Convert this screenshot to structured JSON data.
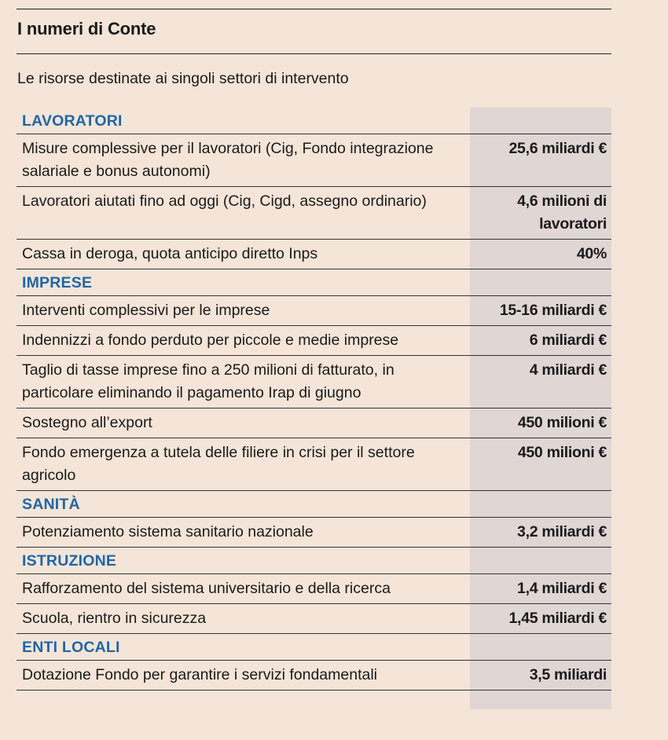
{
  "header": {
    "title": "I numeri di Conte",
    "subtitle": "Le risorse destinate ai singoli settori di intervento"
  },
  "sections": [
    {
      "title": "LAVORATORI",
      "rows": [
        {
          "label": "Misure complessive per il lavoratori (Cig, Fondo integrazione salariale e bonus autonomi)",
          "value": "25,6 miliardi €"
        },
        {
          "label": "Lavoratori aiutati fino ad oggi (Cig, Cigd, assegno ordinario)",
          "value": "4,6 milioni di lavoratori"
        },
        {
          "label": "Cassa in deroga, quota anticipo diretto Inps",
          "value": "40%"
        }
      ]
    },
    {
      "title": "IMPRESE",
      "rows": [
        {
          "label": "Interventi complessivi per le imprese",
          "value": "15-16 miliardi €"
        },
        {
          "label": "Indennizzi a fondo perduto per piccole e medie imprese",
          "value": "6 miliardi €"
        },
        {
          "label": "Taglio di tasse imprese fino a 250 milioni di fatturato, in particolare eliminando il pagamento Irap di giugno",
          "value": "4 miliardi €"
        },
        {
          "label": "Sostegno all’export",
          "value": "450 milioni €"
        },
        {
          "label": "Fondo emergenza a tutela delle filiere in crisi per il settore agricolo",
          "value": "450 milioni €"
        }
      ]
    },
    {
      "title": "SANITÀ",
      "rows": [
        {
          "label": "Potenziamento sistema sanitario nazionale",
          "value": "3,2 miliardi €"
        }
      ]
    },
    {
      "title": "ISTRUZIONE",
      "rows": [
        {
          "label": "Rafforzamento del sistema universitario e della ricerca",
          "value": "1,4 miliardi €"
        },
        {
          "label": "Scuola, rientro in sicurezza",
          "value": "1,45 miliardi €"
        }
      ]
    },
    {
      "title": "ENTI LOCALI",
      "rows": [
        {
          "label": "Dotazione Fondo per garantire i servizi fondamentali",
          "value": "3,5 miliardi"
        }
      ]
    }
  ]
}
